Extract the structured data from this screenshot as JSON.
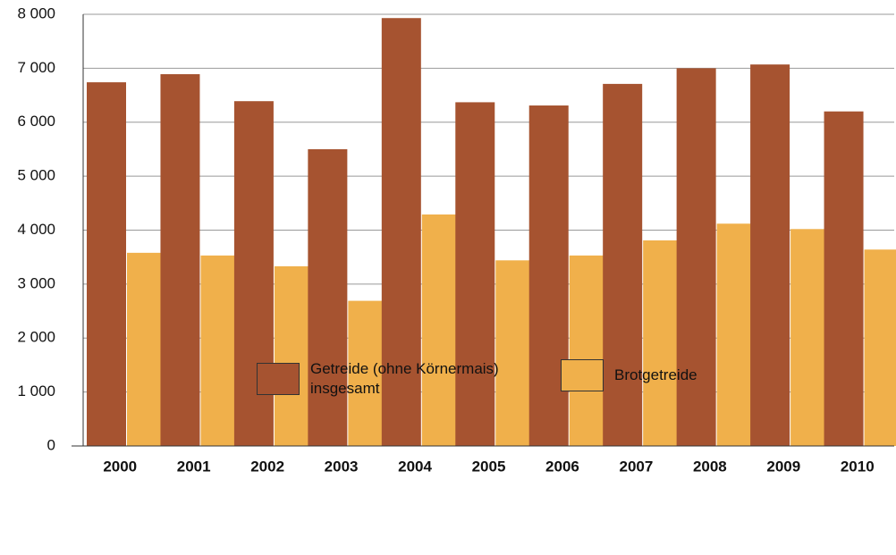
{
  "chart_data": {
    "type": "bar",
    "categories": [
      "2000",
      "2001",
      "2002",
      "2003",
      "2004",
      "2005",
      "2006",
      "2007",
      "2008",
      "2009",
      "2010"
    ],
    "series": [
      {
        "name": "Getreide (ohne Körnermais)\ninsgesamt",
        "color": "#a65330",
        "values": [
          6740,
          6890,
          6390,
          5500,
          7930,
          6370,
          6310,
          6710,
          7000,
          7070,
          6200
        ]
      },
      {
        "name": "Brotgetreide",
        "color": "#f0b04b",
        "values": [
          3580,
          3530,
          3330,
          2690,
          4290,
          3440,
          3530,
          3810,
          4120,
          4020,
          3640
        ]
      }
    ],
    "ylim": [
      0,
      8000
    ],
    "yticks": [
      0,
      {
        "value": 1000,
        "label": "1 000"
      },
      {
        "value": 2000,
        "label": "2 000"
      },
      {
        "value": 3000,
        "label": "3 000"
      },
      {
        "value": 4000,
        "label": "4 000"
      },
      {
        "value": 5000,
        "label": "5 000"
      },
      {
        "value": 6000,
        "label": "6 000"
      },
      {
        "value": 7000,
        "label": "7 000"
      },
      {
        "value": 8000,
        "label": "8 000"
      }
    ],
    "grid": true
  }
}
